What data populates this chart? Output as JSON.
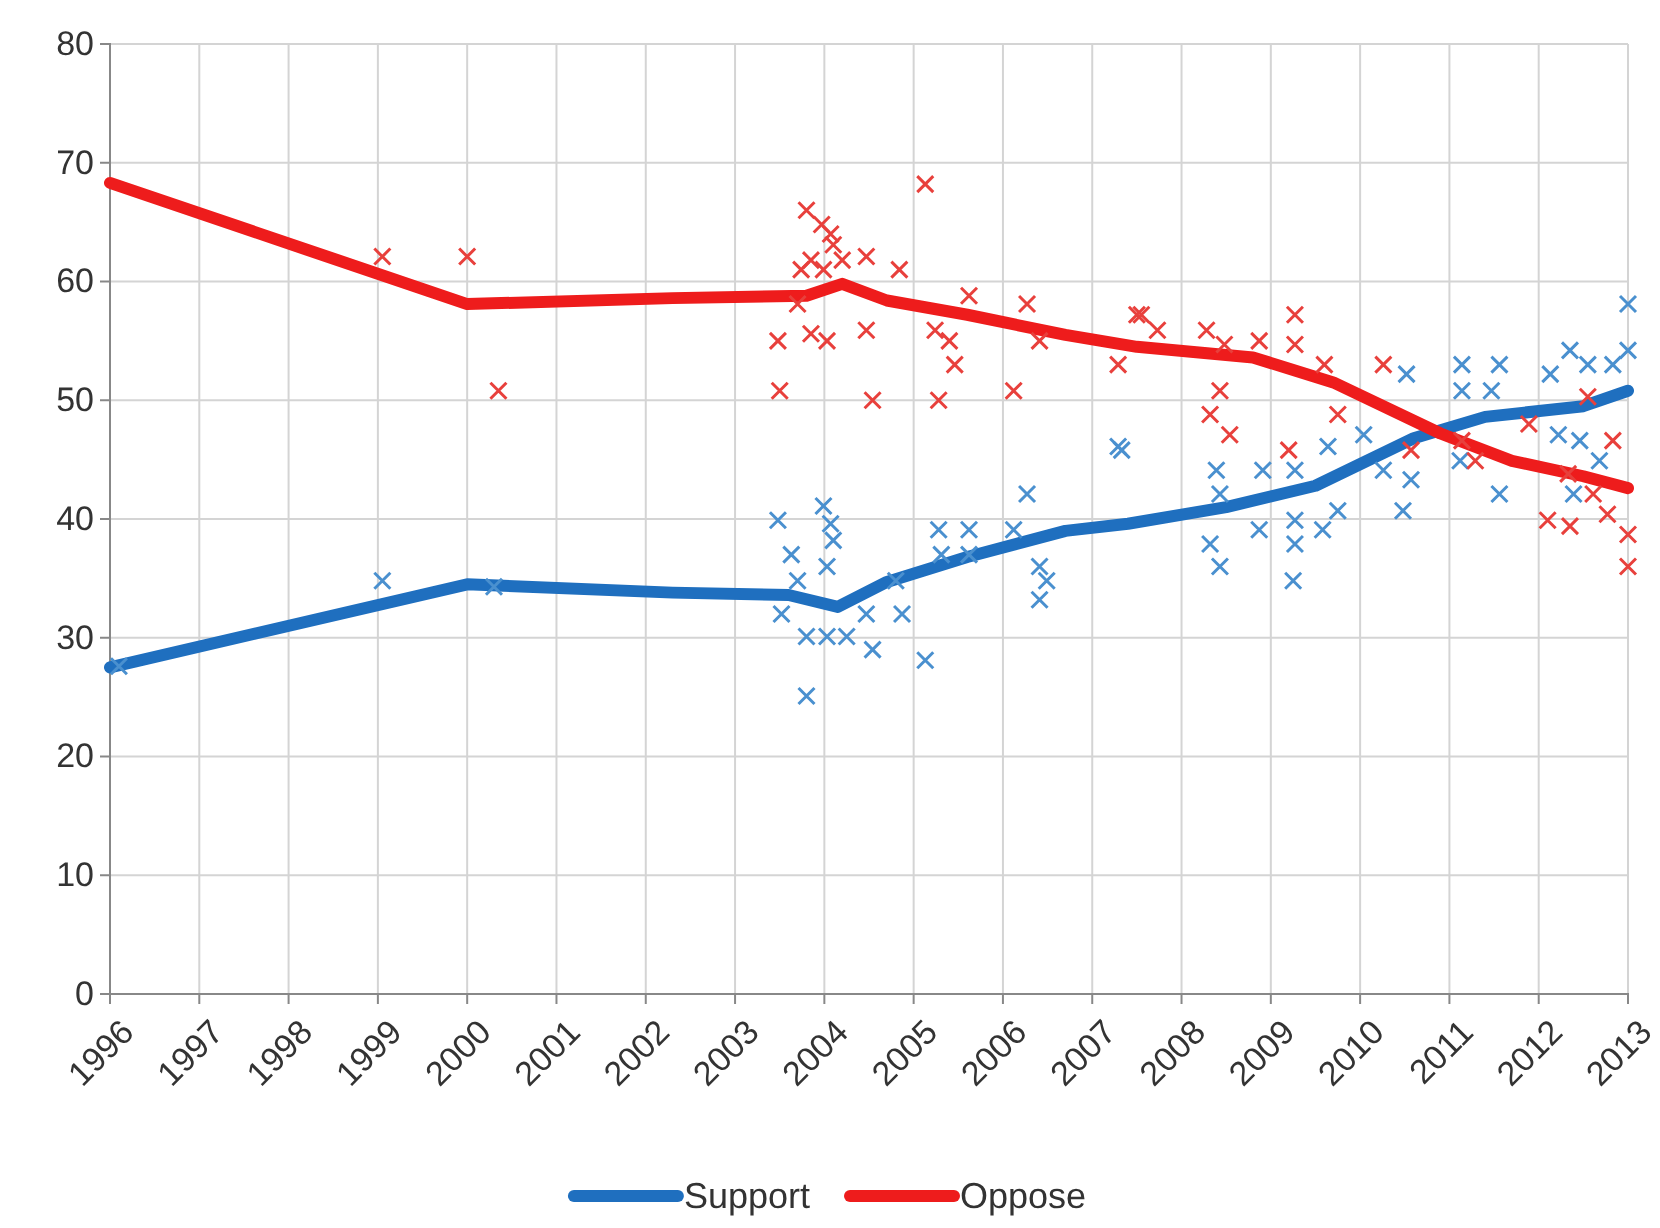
{
  "chart_data": {
    "type": "line",
    "xlim": [
      1996,
      2013
    ],
    "ylim": [
      0,
      80
    ],
    "xticks": [
      1996,
      1997,
      1998,
      1999,
      2000,
      2001,
      2002,
      2003,
      2004,
      2005,
      2006,
      2007,
      2008,
      2009,
      2010,
      2011,
      2012,
      2013
    ],
    "yticks": [
      0,
      10,
      20,
      30,
      40,
      50,
      60,
      70,
      80
    ],
    "grid": true,
    "legend": "bottom",
    "series": [
      {
        "type": "scatter",
        "marker": "cross",
        "color": "#4a90cf",
        "x": [
          1996.1,
          1999.05,
          2000.3,
          2003.48,
          2003.99,
          2004.07,
          2004.1,
          2003.63,
          2004.03,
          2003.7,
          2003.52,
          2003.8,
          2004.03,
          2004.25,
          2004.47,
          2004.54,
          2004.87,
          2005.13,
          2003.8,
          2004.8,
          2005.28,
          2005.62,
          2005.31,
          2005.62,
          2006.12,
          2006.27,
          2006.41,
          2006.49,
          2006.41,
          2007.29,
          2007.33,
          2008.39,
          2008.43,
          2008.91,
          2009.27,
          2009.64,
          2008.32,
          2008.43,
          2008.87,
          2009.27,
          2009.27,
          2009.25,
          2009.58,
          2009.75,
          2010.04,
          2010.26,
          2010.48,
          2010.57,
          2010.52,
          2011.14,
          2011.14,
          2011.56,
          2011.47,
          2011.12,
          2011.56,
          2012.13,
          2012.35,
          2012.55,
          2012.83,
          2012.22,
          2012.46,
          2012.39,
          2012.68,
          2013,
          2013
        ],
        "values": [
          27.6,
          34.8,
          34.3,
          39.9,
          41.1,
          39.6,
          38.2,
          37,
          36,
          34.8,
          32,
          30.1,
          30.1,
          30.1,
          32,
          29,
          32,
          28.1,
          25.1,
          34.8,
          39.1,
          39.1,
          37,
          37,
          39.1,
          42.1,
          36,
          34.8,
          33.2,
          46.1,
          45.8,
          44.1,
          42.1,
          44.1,
          44.1,
          46.1,
          37.9,
          36,
          39.1,
          39.9,
          37.9,
          34.8,
          39.1,
          40.7,
          47.1,
          44.1,
          40.7,
          43.3,
          52.2,
          53,
          50.8,
          53,
          50.8,
          44.9,
          42.1,
          52.2,
          54.2,
          53,
          53,
          47.1,
          46.6,
          42.1,
          44.9,
          58.1,
          54.2
        ]
      },
      {
        "type": "scatter",
        "marker": "cross",
        "color": "#e8403c",
        "x": [
          1999.05,
          2000,
          2000.35,
          2003.8,
          2003.97,
          2004.07,
          2004.1,
          2003.85,
          2003.74,
          2003.99,
          2004.2,
          2004.47,
          2004.84,
          2005.13,
          2003.7,
          2003.48,
          2003.85,
          2004.03,
          2004.47,
          2005.24,
          2005.4,
          2005.46,
          2005.62,
          2006.27,
          2006.41,
          2007.29,
          2007.5,
          2003.5,
          2004.54,
          2005.28,
          2006.12,
          2007.55,
          2007.73,
          2008.28,
          2008.48,
          2008.87,
          2009.27,
          2009.27,
          2009.6,
          2008.43,
          2008.32,
          2008.54,
          2009.2,
          2009.75,
          2010.26,
          2010.57,
          2011.14,
          2011.29,
          2011.89,
          2012.1,
          2012.35,
          2012.33,
          2012.61,
          2012.77,
          2012.83,
          2013,
          2013,
          2012.55
        ],
        "values": [
          62.1,
          62.1,
          50.8,
          66,
          64.8,
          64,
          63.1,
          61.8,
          61,
          61,
          61.8,
          62.1,
          61,
          68.2,
          58.1,
          55,
          55.6,
          55,
          55.9,
          55.9,
          55,
          53,
          58.8,
          58.1,
          55,
          53,
          57.2,
          50.8,
          50,
          50,
          50.8,
          57.2,
          55.9,
          55.9,
          54.7,
          55,
          57.2,
          54.7,
          53,
          50.8,
          48.8,
          47.1,
          45.8,
          48.8,
          53,
          45.8,
          46.6,
          44.9,
          48,
          39.9,
          39.4,
          43.8,
          42.1,
          40.4,
          46.6,
          38.7,
          36,
          50.3
        ]
      },
      {
        "type": "line",
        "name": "Support",
        "marker": "none",
        "color": "#1f6fbf",
        "x": [
          1996,
          2000,
          2002.3,
          2003.6,
          2004.15,
          2004.7,
          2005.6,
          2006.7,
          2007.4,
          2008.5,
          2009.5,
          2010.6,
          2011.4,
          2012.5,
          2013
        ],
        "values": [
          27.5,
          34.5,
          33.8,
          33.6,
          32.6,
          34.7,
          36.8,
          39,
          39.6,
          41,
          42.8,
          46.8,
          48.6,
          49.5,
          50.8
        ]
      },
      {
        "type": "line",
        "name": "Oppose",
        "marker": "none",
        "color": "#ee1c1c",
        "x": [
          1996,
          2000,
          2002.3,
          2003.8,
          2004.2,
          2004.7,
          2005.6,
          2006.7,
          2007.5,
          2008.8,
          2009.7,
          2010.9,
          2011.7,
          2012.5,
          2013
        ],
        "values": [
          68.3,
          58.1,
          58.6,
          58.8,
          59.8,
          58.4,
          57.2,
          55.5,
          54.5,
          53.6,
          51.5,
          47.2,
          44.9,
          43.6,
          42.6
        ]
      }
    ]
  }
}
